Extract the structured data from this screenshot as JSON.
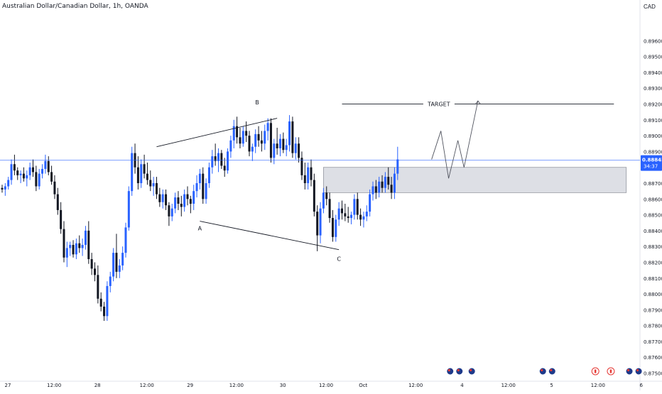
{
  "header": {
    "title": "Australian Dollar/Canadian Dollar, 1h, OANDA",
    "currency": "CAD"
  },
  "price_label": {
    "price": "0.88845",
    "countdown": "34:37"
  },
  "colors": {
    "up": "#2962ff",
    "down": "#131722",
    "price_line": "#2962ff",
    "zone_fill": "#d1d4dc",
    "drawing": "#131722",
    "axis_text": "#131722",
    "axis_line": "#e0e3eb"
  },
  "chart_data": {
    "type": "candlestick",
    "title": "Australian Dollar/Canadian Dollar, 1h, OANDA",
    "ylim": [
      0.8748,
      0.8979
    ],
    "y_ticks": [
      "0.89600",
      "0.89500",
      "0.89400",
      "0.89300",
      "0.89200",
      "0.89100",
      "0.89000",
      "0.88900",
      "0.88800",
      "0.88700",
      "0.88600",
      "0.88500",
      "0.88400",
      "0.88300",
      "0.88200",
      "0.88100",
      "0.88000",
      "0.87900",
      "0.87800",
      "0.87700",
      "0.87600",
      "0.87500"
    ],
    "x_ticks": [
      {
        "label": "27",
        "bar": 0
      },
      {
        "label": "12:00",
        "bar": 15
      },
      {
        "label": "28",
        "bar": 29
      },
      {
        "label": "12:00",
        "bar": 45
      },
      {
        "label": "29",
        "bar": 59
      },
      {
        "label": "12:00",
        "bar": 74
      },
      {
        "label": "30",
        "bar": 89
      },
      {
        "label": "12:00",
        "bar": 103
      },
      {
        "label": "Oct",
        "bar": 115
      },
      {
        "label": "12:00",
        "bar": 132
      },
      {
        "label": "4",
        "bar": 147
      },
      {
        "label": "12:00",
        "bar": 162
      },
      {
        "label": "5",
        "bar": 176
      },
      {
        "label": "12:00",
        "bar": 191
      },
      {
        "label": "6",
        "bar": 205
      }
    ],
    "current_price": 0.88845,
    "candles": [
      [
        0.8867,
        0.8869,
        0.8864,
        0.8866
      ],
      [
        0.8866,
        0.887,
        0.8862,
        0.8868
      ],
      [
        0.8868,
        0.8874,
        0.8866,
        0.8872
      ],
      [
        0.8872,
        0.8885,
        0.8869,
        0.8882
      ],
      [
        0.8882,
        0.8888,
        0.8875,
        0.8878
      ],
      [
        0.8878,
        0.888,
        0.8872,
        0.8875
      ],
      [
        0.8875,
        0.8878,
        0.887,
        0.8876
      ],
      [
        0.8876,
        0.888,
        0.8871,
        0.8873
      ],
      [
        0.8873,
        0.8878,
        0.8868,
        0.8875
      ],
      [
        0.8875,
        0.8883,
        0.8872,
        0.888
      ],
      [
        0.888,
        0.8885,
        0.8874,
        0.8877
      ],
      [
        0.8877,
        0.8881,
        0.8865,
        0.8868
      ],
      [
        0.8868,
        0.8879,
        0.8866,
        0.8876
      ],
      [
        0.8876,
        0.8882,
        0.8873,
        0.8879
      ],
      [
        0.8879,
        0.8888,
        0.8876,
        0.8884
      ],
      [
        0.8884,
        0.8887,
        0.8875,
        0.8877
      ],
      [
        0.8877,
        0.8881,
        0.8869,
        0.8871
      ],
      [
        0.8871,
        0.8875,
        0.886,
        0.8863
      ],
      [
        0.8863,
        0.8867,
        0.885,
        0.8853
      ],
      [
        0.8853,
        0.8858,
        0.8838,
        0.8841
      ],
      [
        0.8841,
        0.8846,
        0.882,
        0.8823
      ],
      [
        0.8823,
        0.8833,
        0.8817,
        0.8829
      ],
      [
        0.8829,
        0.8833,
        0.8824,
        0.8831
      ],
      [
        0.8831,
        0.8834,
        0.8823,
        0.8825
      ],
      [
        0.8825,
        0.8835,
        0.8822,
        0.8832
      ],
      [
        0.8832,
        0.8837,
        0.8826,
        0.8829
      ],
      [
        0.8829,
        0.8835,
        0.8824,
        0.8831
      ],
      [
        0.8831,
        0.8843,
        0.8828,
        0.884
      ],
      [
        0.884,
        0.8846,
        0.8819,
        0.8822
      ],
      [
        0.8822,
        0.8826,
        0.8812,
        0.8816
      ],
      [
        0.8816,
        0.882,
        0.8808,
        0.8812
      ],
      [
        0.8812,
        0.8818,
        0.8794,
        0.8797
      ],
      [
        0.8797,
        0.8801,
        0.8789,
        0.8792
      ],
      [
        0.8792,
        0.8795,
        0.8783,
        0.8786
      ],
      [
        0.8786,
        0.8808,
        0.8783,
        0.8805
      ],
      [
        0.8805,
        0.8814,
        0.8801,
        0.8811
      ],
      [
        0.8811,
        0.8829,
        0.8808,
        0.8826
      ],
      [
        0.8826,
        0.8838,
        0.881,
        0.8814
      ],
      [
        0.8814,
        0.8822,
        0.881,
        0.8818
      ],
      [
        0.8818,
        0.883,
        0.8815,
        0.8826
      ],
      [
        0.8826,
        0.8845,
        0.8823,
        0.8842
      ],
      [
        0.8842,
        0.8868,
        0.884,
        0.8865
      ],
      [
        0.8865,
        0.8893,
        0.8862,
        0.8889
      ],
      [
        0.8889,
        0.8895,
        0.8876,
        0.888
      ],
      [
        0.888,
        0.8887,
        0.8866,
        0.887
      ],
      [
        0.887,
        0.8885,
        0.8867,
        0.8882
      ],
      [
        0.8882,
        0.8888,
        0.8873,
        0.8876
      ],
      [
        0.8876,
        0.8883,
        0.8869,
        0.8872
      ],
      [
        0.8872,
        0.8878,
        0.8865,
        0.8868
      ],
      [
        0.8868,
        0.8874,
        0.8862,
        0.887
      ],
      [
        0.887,
        0.8874,
        0.886,
        0.8863
      ],
      [
        0.8863,
        0.8867,
        0.8855,
        0.8858
      ],
      [
        0.8858,
        0.8866,
        0.8854,
        0.8863
      ],
      [
        0.8863,
        0.8866,
        0.8853,
        0.8856
      ],
      [
        0.8856,
        0.8858,
        0.8843,
        0.8849
      ],
      [
        0.8849,
        0.8857,
        0.8846,
        0.8854
      ],
      [
        0.8854,
        0.8864,
        0.8851,
        0.8861
      ],
      [
        0.8861,
        0.8865,
        0.8853,
        0.8857
      ],
      [
        0.8857,
        0.8862,
        0.8849,
        0.8855
      ],
      [
        0.8855,
        0.8866,
        0.8852,
        0.8863
      ],
      [
        0.8863,
        0.8868,
        0.8856,
        0.886
      ],
      [
        0.886,
        0.8862,
        0.8851,
        0.8857
      ],
      [
        0.8857,
        0.8869,
        0.8853,
        0.8865
      ],
      [
        0.8865,
        0.8875,
        0.8861,
        0.887
      ],
      [
        0.887,
        0.8879,
        0.8866,
        0.8876
      ],
      [
        0.8876,
        0.888,
        0.8857,
        0.886
      ],
      [
        0.886,
        0.8873,
        0.8857,
        0.887
      ],
      [
        0.887,
        0.8883,
        0.8867,
        0.888
      ],
      [
        0.888,
        0.8891,
        0.8876,
        0.8887
      ],
      [
        0.8887,
        0.8895,
        0.8881,
        0.8884
      ],
      [
        0.8884,
        0.8892,
        0.8877,
        0.8889
      ],
      [
        0.8889,
        0.8891,
        0.8879,
        0.8881
      ],
      [
        0.8881,
        0.8886,
        0.8874,
        0.8878
      ],
      [
        0.8878,
        0.8892,
        0.8876,
        0.889
      ],
      [
        0.889,
        0.89,
        0.8886,
        0.8897
      ],
      [
        0.8897,
        0.891,
        0.8892,
        0.8906
      ],
      [
        0.8906,
        0.8912,
        0.8895,
        0.8899
      ],
      [
        0.8899,
        0.8905,
        0.8892,
        0.8895
      ],
      [
        0.8895,
        0.8906,
        0.8893,
        0.8903
      ],
      [
        0.8903,
        0.8909,
        0.8896,
        0.89
      ],
      [
        0.89,
        0.8903,
        0.8887,
        0.889
      ],
      [
        0.889,
        0.8895,
        0.8884,
        0.8893
      ],
      [
        0.8893,
        0.8904,
        0.8889,
        0.8901
      ],
      [
        0.8901,
        0.8906,
        0.8893,
        0.8897
      ],
      [
        0.8897,
        0.8903,
        0.889,
        0.8895
      ],
      [
        0.8895,
        0.8907,
        0.8891,
        0.8903
      ],
      [
        0.8903,
        0.8911,
        0.8897,
        0.8908
      ],
      [
        0.8908,
        0.8911,
        0.8883,
        0.8886
      ],
      [
        0.8886,
        0.8898,
        0.8882,
        0.8895
      ],
      [
        0.8895,
        0.8905,
        0.8888,
        0.8892
      ],
      [
        0.8892,
        0.8901,
        0.8887,
        0.8898
      ],
      [
        0.8898,
        0.8902,
        0.8889,
        0.8891
      ],
      [
        0.8891,
        0.8898,
        0.8887,
        0.8894
      ],
      [
        0.8894,
        0.8913,
        0.889,
        0.8909
      ],
      [
        0.8909,
        0.8912,
        0.8886,
        0.8889
      ],
      [
        0.8889,
        0.8899,
        0.8885,
        0.8895
      ],
      [
        0.8895,
        0.8899,
        0.8883,
        0.8886
      ],
      [
        0.8886,
        0.889,
        0.8872,
        0.8875
      ],
      [
        0.8875,
        0.8883,
        0.8866,
        0.887
      ],
      [
        0.887,
        0.8883,
        0.8866,
        0.888
      ],
      [
        0.888,
        0.8885,
        0.8868,
        0.8872
      ],
      [
        0.8872,
        0.8876,
        0.8849,
        0.8852
      ],
      [
        0.8852,
        0.8856,
        0.8827,
        0.8837
      ],
      [
        0.8837,
        0.8858,
        0.8832,
        0.8854
      ],
      [
        0.8854,
        0.8867,
        0.8851,
        0.8864
      ],
      [
        0.8864,
        0.8868,
        0.8856,
        0.886
      ],
      [
        0.886,
        0.8864,
        0.8845,
        0.8848
      ],
      [
        0.8848,
        0.8853,
        0.8833,
        0.8836
      ],
      [
        0.8836,
        0.885,
        0.8833,
        0.8847
      ],
      [
        0.8847,
        0.8858,
        0.8843,
        0.8854
      ],
      [
        0.8854,
        0.8859,
        0.8847,
        0.8851
      ],
      [
        0.8851,
        0.8857,
        0.8846,
        0.8849
      ],
      [
        0.8849,
        0.8855,
        0.8845,
        0.8848
      ],
      [
        0.8848,
        0.8852,
        0.8844,
        0.885
      ],
      [
        0.885,
        0.8863,
        0.8847,
        0.886
      ],
      [
        0.886,
        0.8864,
        0.8847,
        0.885
      ],
      [
        0.885,
        0.8854,
        0.8843,
        0.8847
      ],
      [
        0.8847,
        0.8852,
        0.8842,
        0.8849
      ],
      [
        0.8849,
        0.8856,
        0.8846,
        0.8852
      ],
      [
        0.8852,
        0.8866,
        0.8849,
        0.8863
      ],
      [
        0.8863,
        0.8871,
        0.8859,
        0.8868
      ],
      [
        0.8868,
        0.8872,
        0.886,
        0.8864
      ],
      [
        0.8864,
        0.8874,
        0.8861,
        0.8871
      ],
      [
        0.8871,
        0.8875,
        0.8864,
        0.8867
      ],
      [
        0.8867,
        0.8877,
        0.8864,
        0.8874
      ],
      [
        0.8874,
        0.888,
        0.8866,
        0.8869
      ],
      [
        0.8869,
        0.8874,
        0.886,
        0.8864
      ],
      [
        0.8864,
        0.888,
        0.886,
        0.8876
      ],
      [
        0.8876,
        0.8893,
        0.8872,
        0.8885
      ]
    ],
    "zone": {
      "top": 0.888,
      "bottom": 0.8864,
      "start_bar": 104,
      "end_bar": 202
    },
    "target_line": {
      "price": 0.892,
      "start_bar": 110,
      "end_bar": 198,
      "label": "TARGET"
    },
    "pattern": {
      "points": [
        {
          "label": "A",
          "bar": 64,
          "price": 0.8846
        },
        {
          "label": "B",
          "bar": 50,
          "price": 0.8893
        },
        {
          "label": "C",
          "bar": 109,
          "price": 0.8828
        }
      ],
      "upper_line": {
        "bar1": 50,
        "price1": 0.8893,
        "bar2": 89,
        "price2": 0.8911
      },
      "lower_line": {
        "bar1": 64,
        "price1": 0.8846,
        "bar2": 109,
        "price2": 0.8828
      }
    },
    "projection_path": [
      {
        "bar": 139,
        "price": 0.8885
      },
      {
        "bar": 142,
        "price": 0.8903
      },
      {
        "bar": 144.5,
        "price": 0.8873
      },
      {
        "bar": 147.5,
        "price": 0.8897
      },
      {
        "bar": 149.5,
        "price": 0.888
      },
      {
        "bar": 154,
        "price": 0.8922
      }
    ],
    "events": [
      {
        "type": "au",
        "bar": 145
      },
      {
        "type": "au",
        "bar": 148
      },
      {
        "type": "au",
        "bar": 152
      },
      {
        "type": "au",
        "bar": 175
      },
      {
        "type": "au",
        "bar": 178
      },
      {
        "type": "ca",
        "bar": 192
      },
      {
        "type": "ca",
        "bar": 197
      },
      {
        "type": "au",
        "bar": 203
      },
      {
        "type": "au",
        "bar": 206
      }
    ]
  }
}
